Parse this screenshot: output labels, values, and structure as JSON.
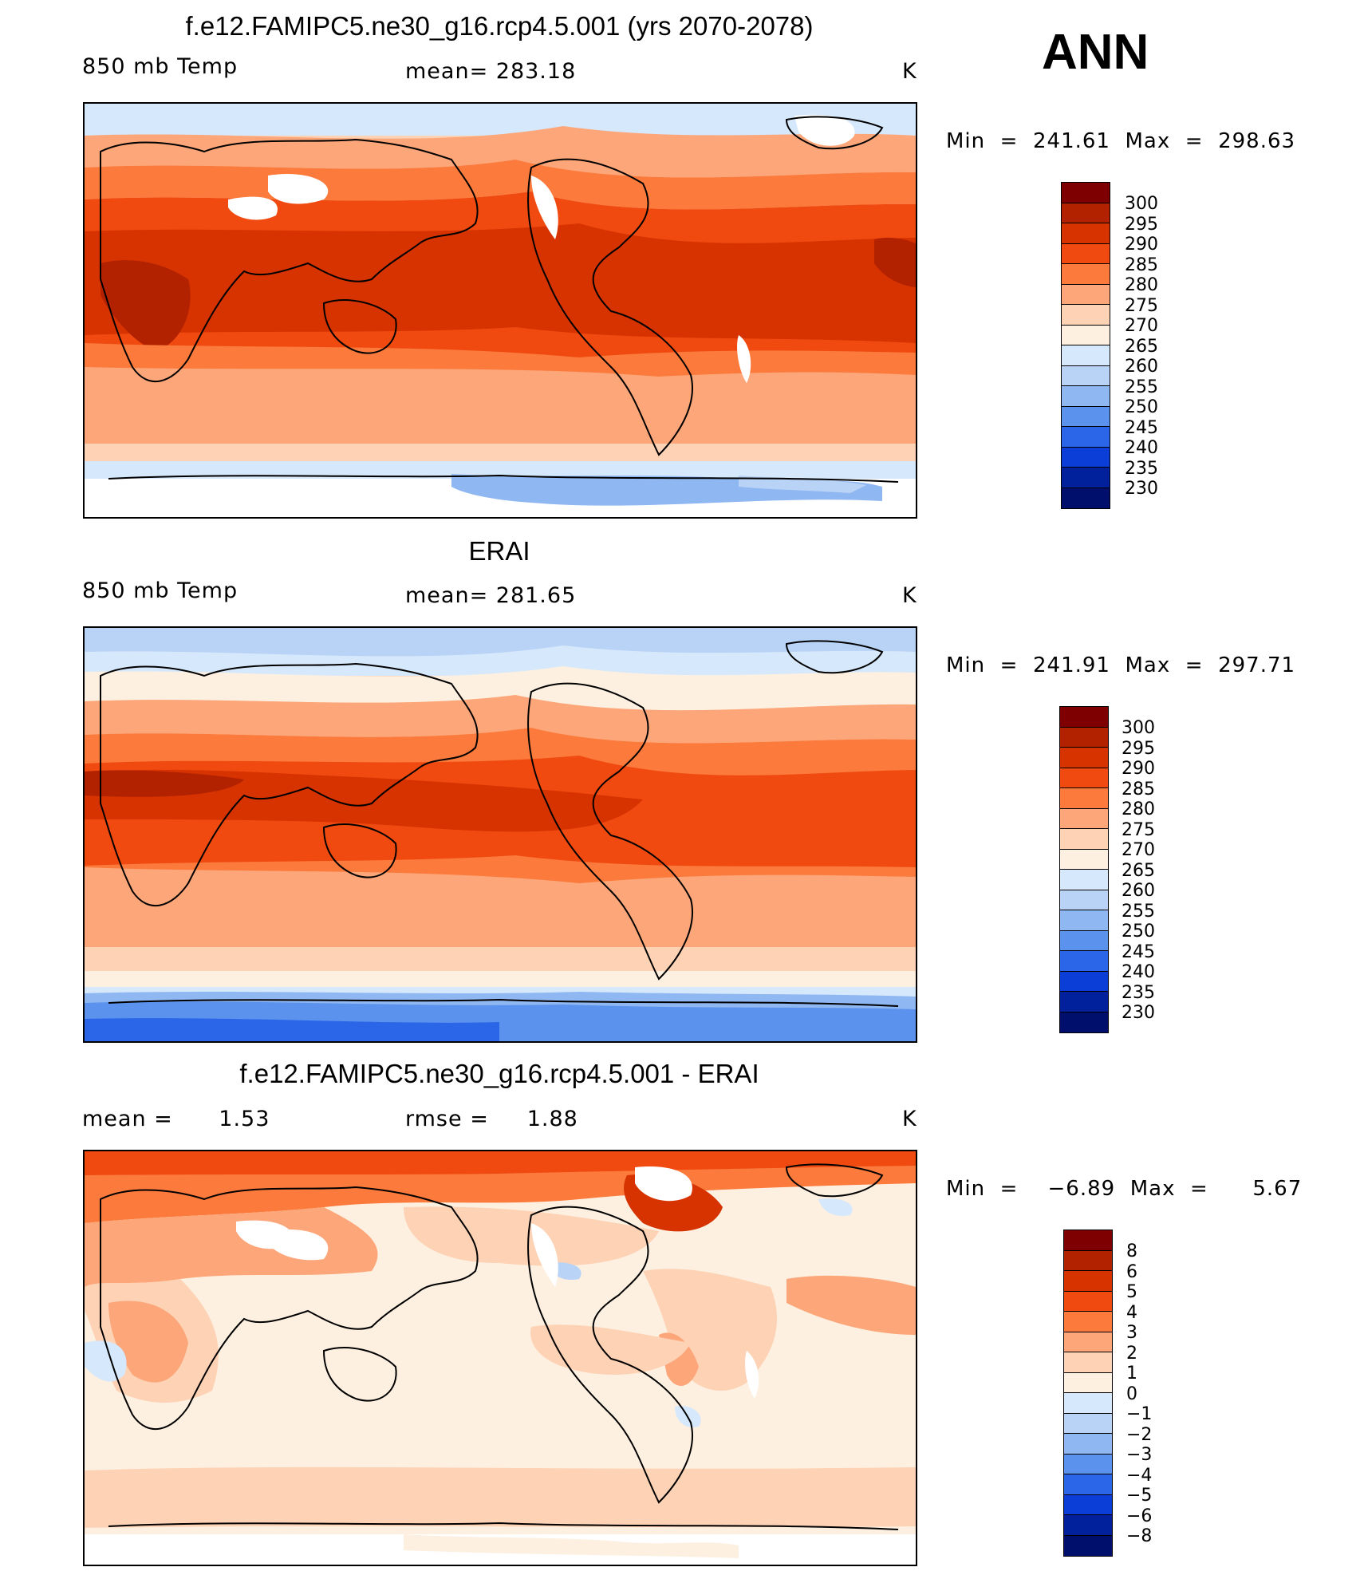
{
  "season": "ANN",
  "panels": [
    {
      "title": "f.e12.FAMIPC5.ne30_g16.rcp4.5.001 (yrs 2070-2078)",
      "left_label": "850 mb Temp",
      "center_label": "mean= 283.18",
      "units": "K",
      "minmax": "Min  =  241.61  Max  =  298.63",
      "colorbar": {
        "levels": [
          "300",
          "295",
          "290",
          "285",
          "280",
          "275",
          "270",
          "265",
          "260",
          "255",
          "250",
          "245",
          "240",
          "235",
          "230"
        ],
        "colors": [
          "#7f0000",
          "#b22200",
          "#d63300",
          "#f04a10",
          "#fb7a3c",
          "#fca679",
          "#fdd2b5",
          "#fdf0e0",
          "#d6e8fb",
          "#b9d3f7",
          "#8fb7f2",
          "#5b92ed",
          "#2b66e8",
          "#0b3ed6",
          "#00209c",
          "#000f6b"
        ]
      }
    },
    {
      "title": "ERAI",
      "left_label": "850 mb Temp",
      "center_label": "mean= 281.65",
      "units": "K",
      "minmax": "Min  =  241.91  Max  =  297.71",
      "colorbar": {
        "levels": [
          "300",
          "295",
          "290",
          "285",
          "280",
          "275",
          "270",
          "265",
          "260",
          "255",
          "250",
          "245",
          "240",
          "235",
          "230"
        ],
        "colors": [
          "#7f0000",
          "#b22200",
          "#d63300",
          "#f04a10",
          "#fb7a3c",
          "#fca679",
          "#fdd2b5",
          "#fdf0e0",
          "#d6e8fb",
          "#b9d3f7",
          "#8fb7f2",
          "#5b92ed",
          "#2b66e8",
          "#0b3ed6",
          "#00209c",
          "#000f6b"
        ]
      }
    },
    {
      "title": "f.e12.FAMIPC5.ne30_g16.rcp4.5.001 - ERAI",
      "left_label": "mean =      1.53",
      "center_label": "rmse =     1.88",
      "units": "K",
      "minmax": "Min  =    −6.89  Max  =      5.67",
      "colorbar": {
        "levels": [
          "8",
          "6",
          "5",
          "4",
          "3",
          "2",
          "1",
          "0",
          "−1",
          "−2",
          "−3",
          "−4",
          "−5",
          "−6",
          "−8"
        ],
        "colors": [
          "#7f0000",
          "#b22200",
          "#d63300",
          "#f04a10",
          "#fb7a3c",
          "#fca679",
          "#fdd2b5",
          "#fdf0e0",
          "#d6e8fb",
          "#b9d3f7",
          "#8fb7f2",
          "#5b92ed",
          "#2b66e8",
          "#0b3ed6",
          "#00209c",
          "#000f6b"
        ]
      }
    }
  ]
}
